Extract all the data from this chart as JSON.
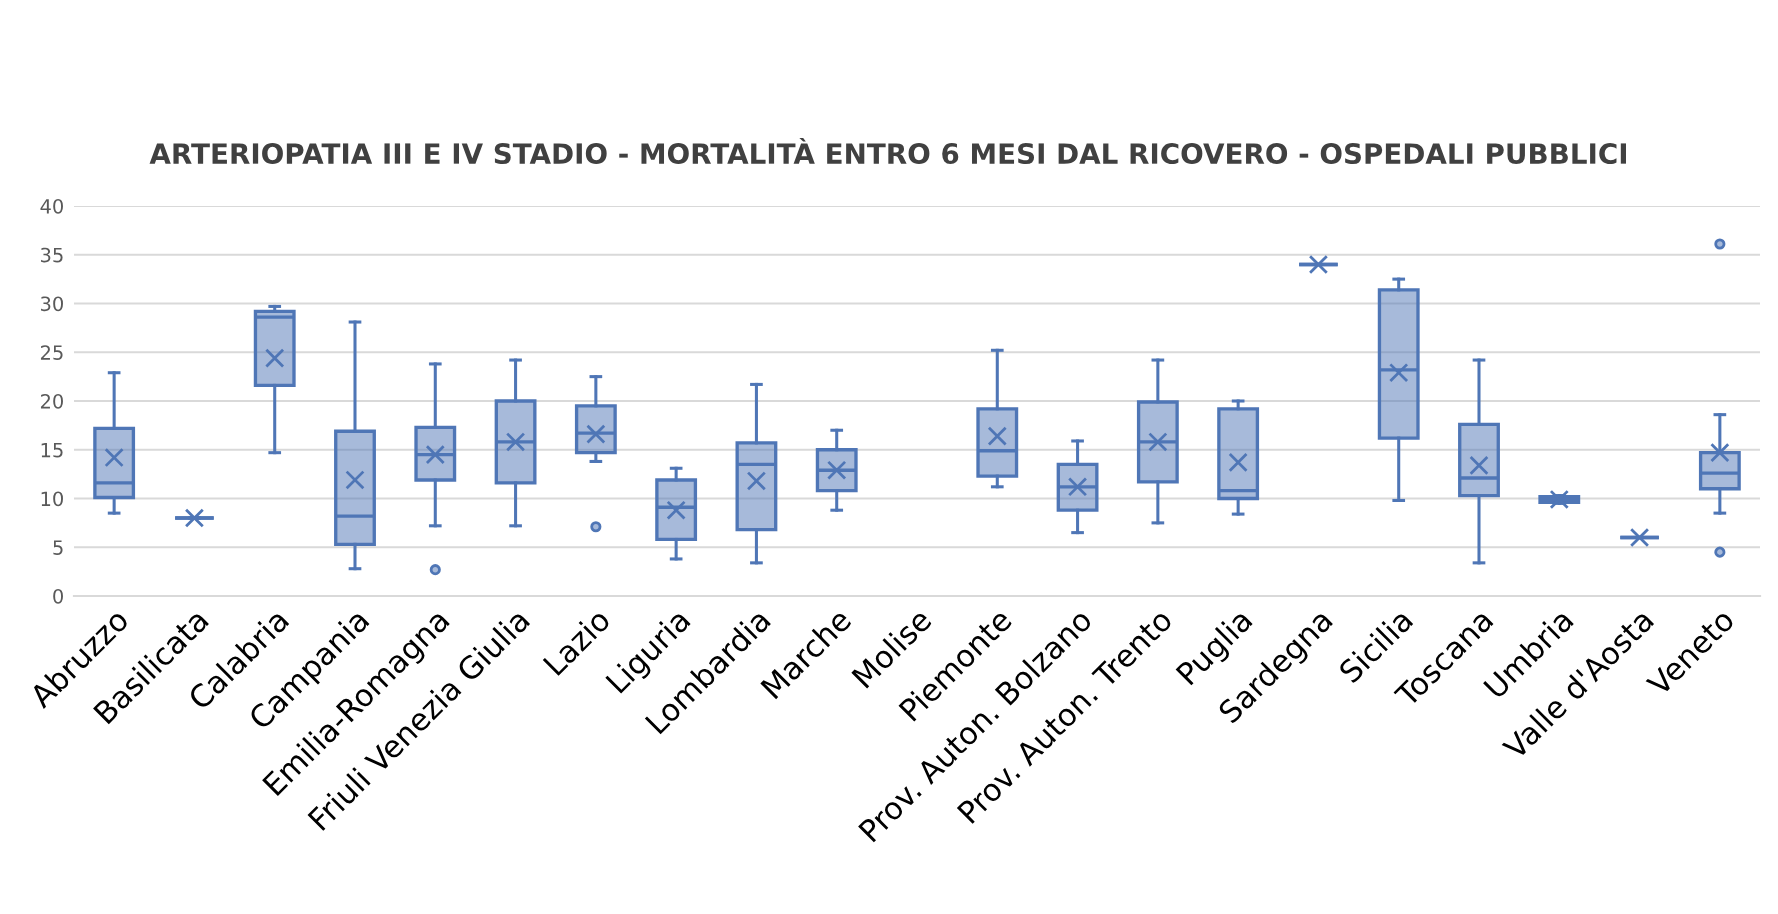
{
  "chart_data": {
    "type": "box",
    "title": "ARTERIOPATIA III E IV STADIO - MORTALITÀ ENTRO 6 MESI DAL RICOVERO - OSPEDALI PUBBLICI",
    "categories": [
      "Abruzzo",
      "Basilicata",
      "Calabria",
      "Campania",
      "Emilia-Romagna",
      "Friuli Venezia Giulia",
      "Lazio",
      "Liguria",
      "Lombardia",
      "Marche",
      "Molise",
      "Piemonte",
      "Prov. Auton. Bolzano",
      "Prov. Auton. Trento",
      "Puglia",
      "Sardegna",
      "Sicilia",
      "Toscana",
      "Umbria",
      "Valle d'Aosta",
      "Veneto"
    ],
    "boxes": [
      {
        "low": 8.5,
        "q1": 10.1,
        "median": 11.6,
        "q3": 17.2,
        "high": 22.9,
        "mean": 14.2
      },
      {
        "low": 8,
        "q1": 8,
        "median": 8,
        "q3": 8,
        "high": 8,
        "mean": 8
      },
      {
        "low": 14.7,
        "q1": 21.6,
        "median": 28.6,
        "q3": 29.2,
        "high": 29.7,
        "mean": 24.4
      },
      {
        "low": 2.8,
        "q1": 5.3,
        "median": 8.2,
        "q3": 16.9,
        "high": 28.1,
        "mean": 11.9
      },
      {
        "low": 7.2,
        "q1": 11.9,
        "median": 14.5,
        "q3": 17.3,
        "high": 23.8,
        "mean": 14.5,
        "outliers": [
          2.7
        ]
      },
      {
        "low": 7.2,
        "q1": 11.6,
        "median": 15.8,
        "q3": 20.0,
        "high": 24.2,
        "mean": 15.8
      },
      {
        "low": 13.8,
        "q1": 14.7,
        "median": 16.7,
        "q3": 19.5,
        "high": 22.5,
        "mean": 16.6,
        "outliers": [
          7.1
        ]
      },
      {
        "low": 3.8,
        "q1": 5.8,
        "median": 9.1,
        "q3": 11.9,
        "high": 13.1,
        "mean": 8.8
      },
      {
        "low": 3.4,
        "q1": 6.8,
        "median": 13.5,
        "q3": 15.7,
        "high": 21.7,
        "mean": 11.8
      },
      {
        "low": 8.8,
        "q1": 10.8,
        "median": 12.9,
        "q3": 15.0,
        "high": 17.0,
        "mean": 12.9
      },
      null,
      {
        "low": 11.2,
        "q1": 12.3,
        "median": 14.9,
        "q3": 19.2,
        "high": 25.2,
        "mean": 16.4
      },
      {
        "low": 6.5,
        "q1": 8.8,
        "median": 11.2,
        "q3": 13.5,
        "high": 15.9,
        "mean": 11.2
      },
      {
        "low": 7.5,
        "q1": 11.7,
        "median": 15.8,
        "q3": 19.9,
        "high": 24.2,
        "mean": 15.8
      },
      {
        "low": 8.4,
        "q1": 10.0,
        "median": 10.8,
        "q3": 19.2,
        "high": 20.0,
        "mean": 13.7
      },
      {
        "low": 34,
        "q1": 34,
        "median": 34,
        "q3": 34,
        "high": 34,
        "mean": 34
      },
      {
        "low": 9.8,
        "q1": 16.2,
        "median": 23.2,
        "q3": 31.4,
        "high": 32.5,
        "mean": 22.9
      },
      {
        "low": 3.4,
        "q1": 10.3,
        "median": 12.1,
        "q3": 17.6,
        "high": 24.2,
        "mean": 13.4
      },
      {
        "low": 9.5,
        "q1": 9.6,
        "median": 9.9,
        "q3": 10.2,
        "high": 10.3,
        "mean": 9.9
      },
      {
        "low": 6,
        "q1": 6,
        "median": 6,
        "q3": 6,
        "high": 6,
        "mean": 6
      },
      {
        "low": 8.5,
        "q1": 11.0,
        "median": 12.6,
        "q3": 14.7,
        "high": 18.6,
        "mean": 14.7,
        "outliers": [
          36.1,
          4.5
        ]
      }
    ],
    "color": "#4f76b6",
    "ylim": [
      0,
      40
    ],
    "yticks": [
      0,
      5,
      10,
      15,
      20,
      25,
      30,
      35,
      40
    ],
    "grid": "y",
    "legend": false
  }
}
